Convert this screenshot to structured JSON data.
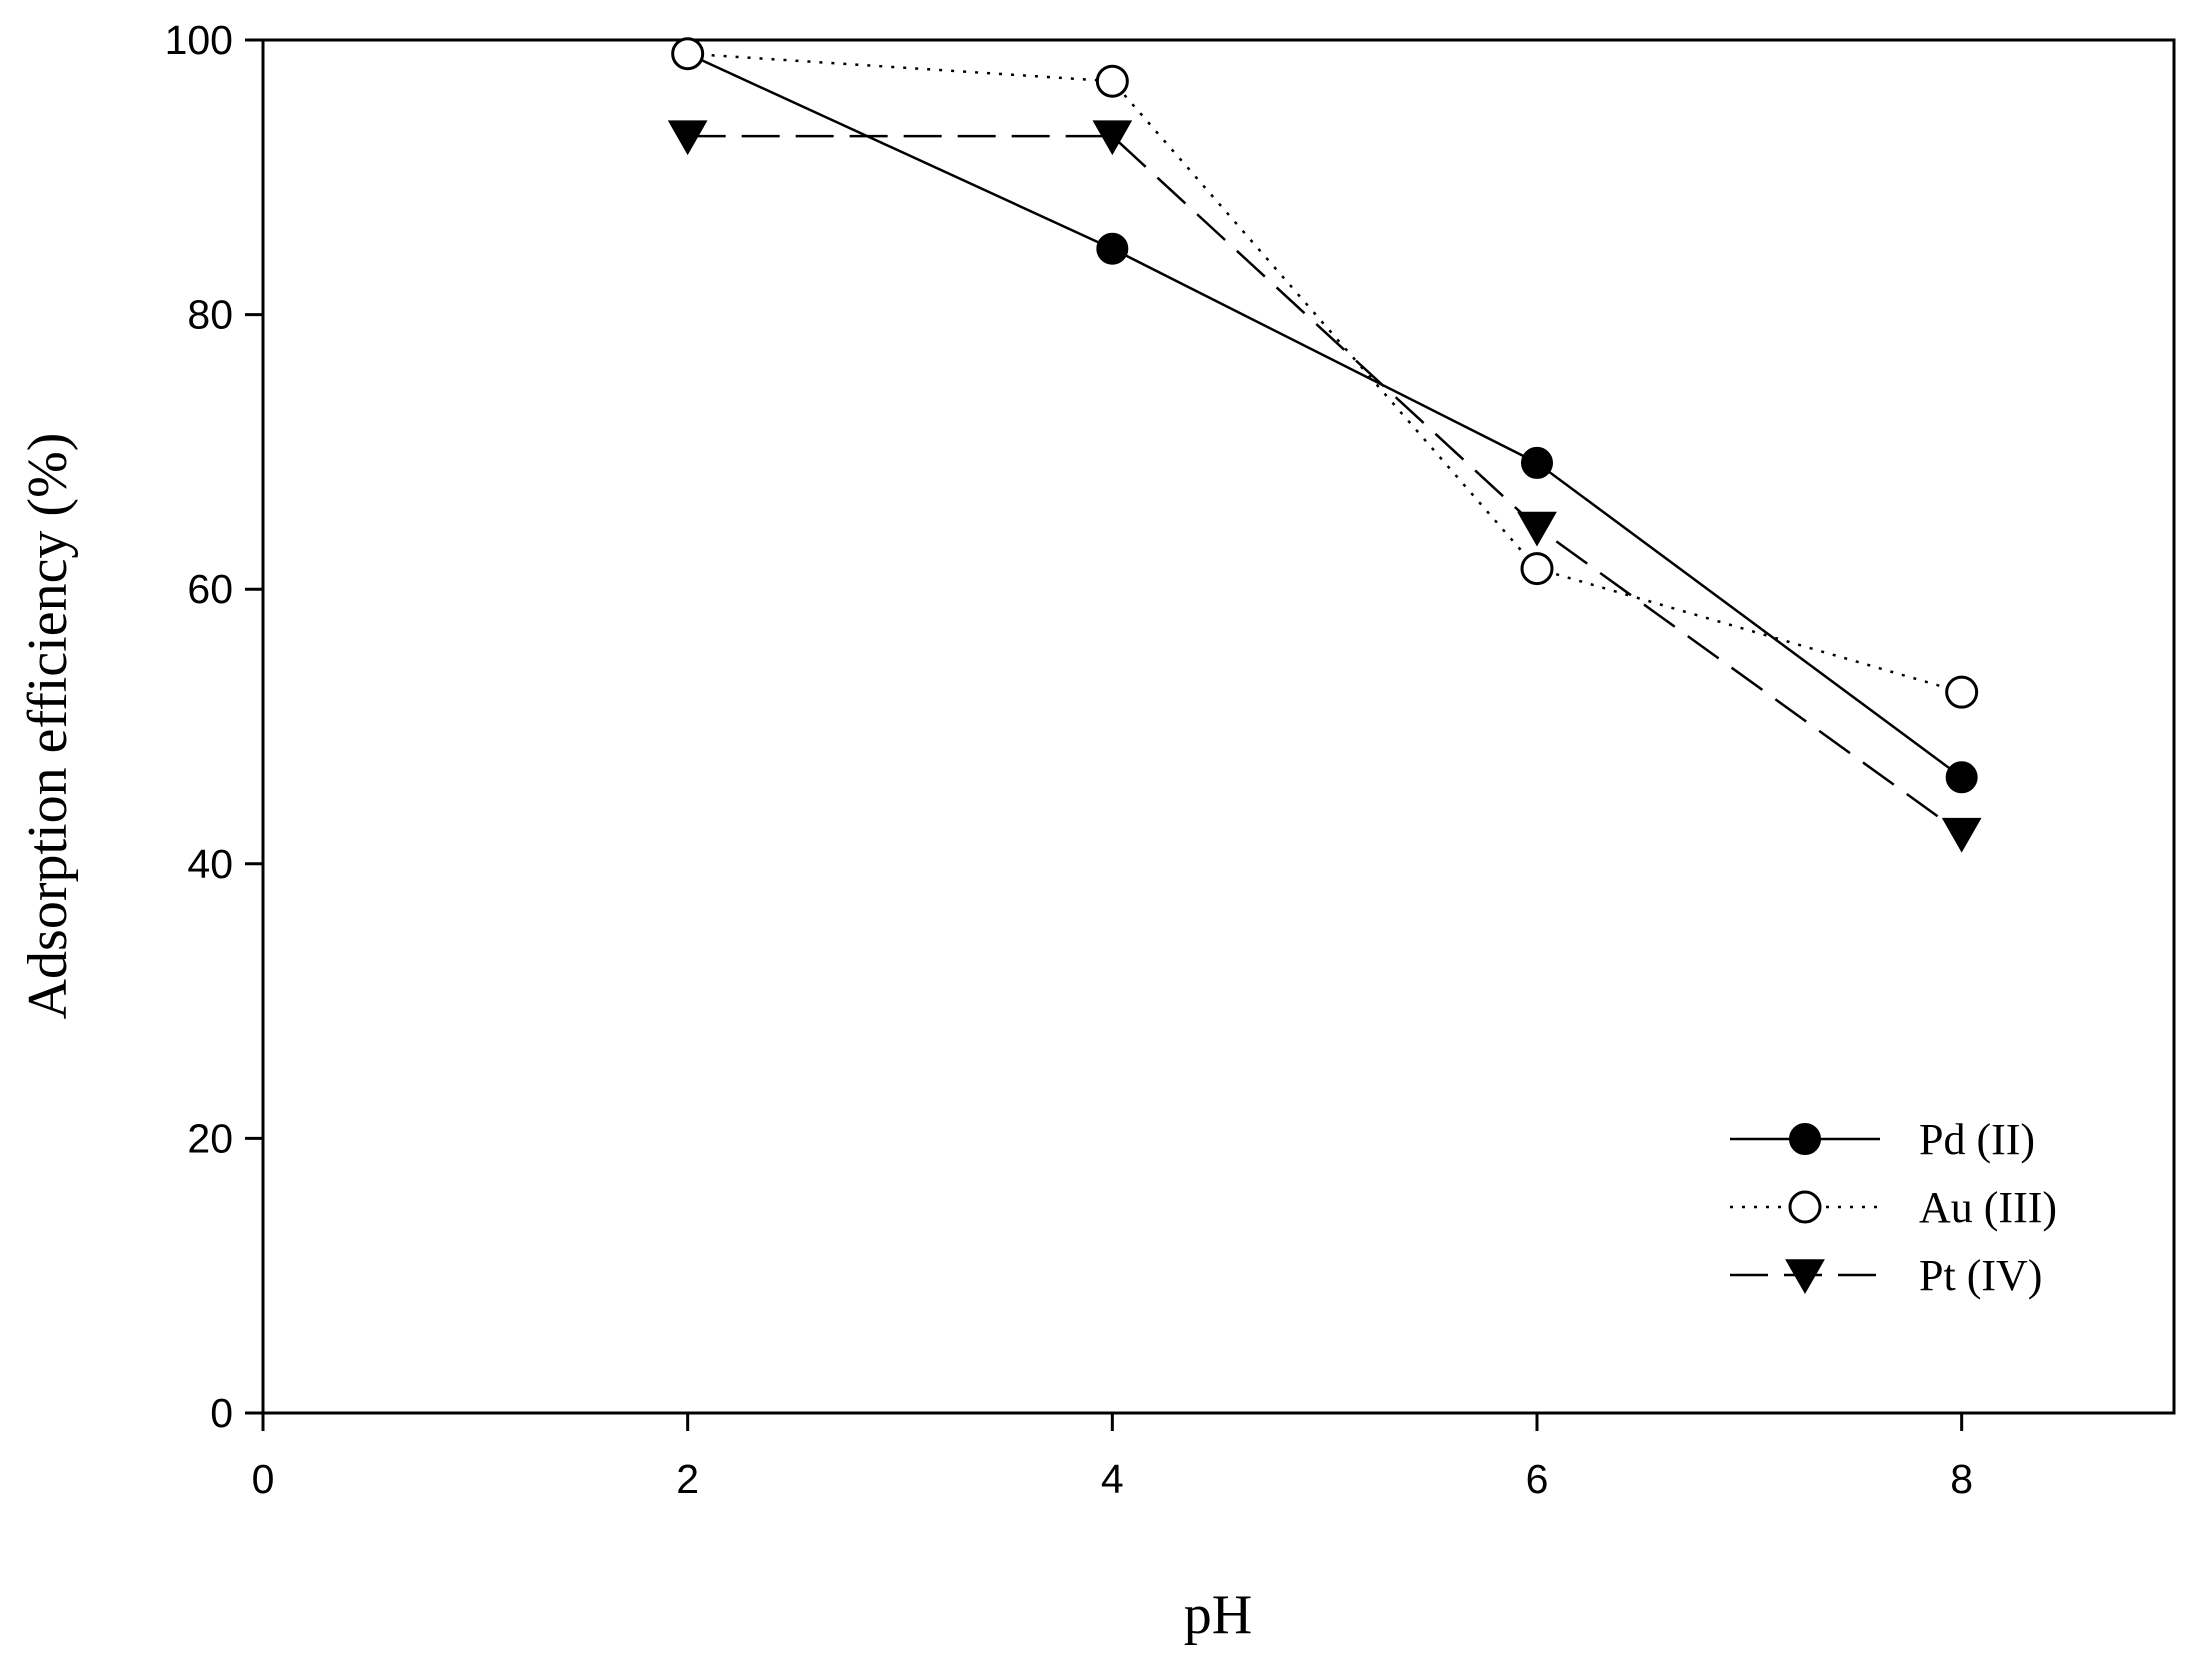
{
  "chart_data": {
    "type": "line",
    "xlabel": "pH",
    "ylabel": "Adsorption efficiency (%)",
    "xlim": [
      0,
      9
    ],
    "ylim": [
      0,
      100
    ],
    "xticks": [
      "0",
      "2",
      "4",
      "6",
      "8"
    ],
    "yticks": [
      "0",
      "20",
      "40",
      "60",
      "80",
      "100"
    ],
    "x": [
      2,
      4,
      6,
      8
    ],
    "grid": false,
    "legend_position": "bottom-right",
    "series": [
      {
        "name": "Pd (II)",
        "values": [
          99,
          84.8,
          69.2,
          46.3
        ],
        "marker": "filled-circle",
        "line": "solid"
      },
      {
        "name": "Au (III)",
        "values": [
          99,
          97,
          61.5,
          52.5
        ],
        "marker": "open-circle",
        "line": "dotted"
      },
      {
        "name": "Pt (IV)",
        "values": [
          93,
          93,
          64.5,
          42.2
        ],
        "marker": "filled-triangle-down",
        "line": "dashed"
      }
    ]
  }
}
